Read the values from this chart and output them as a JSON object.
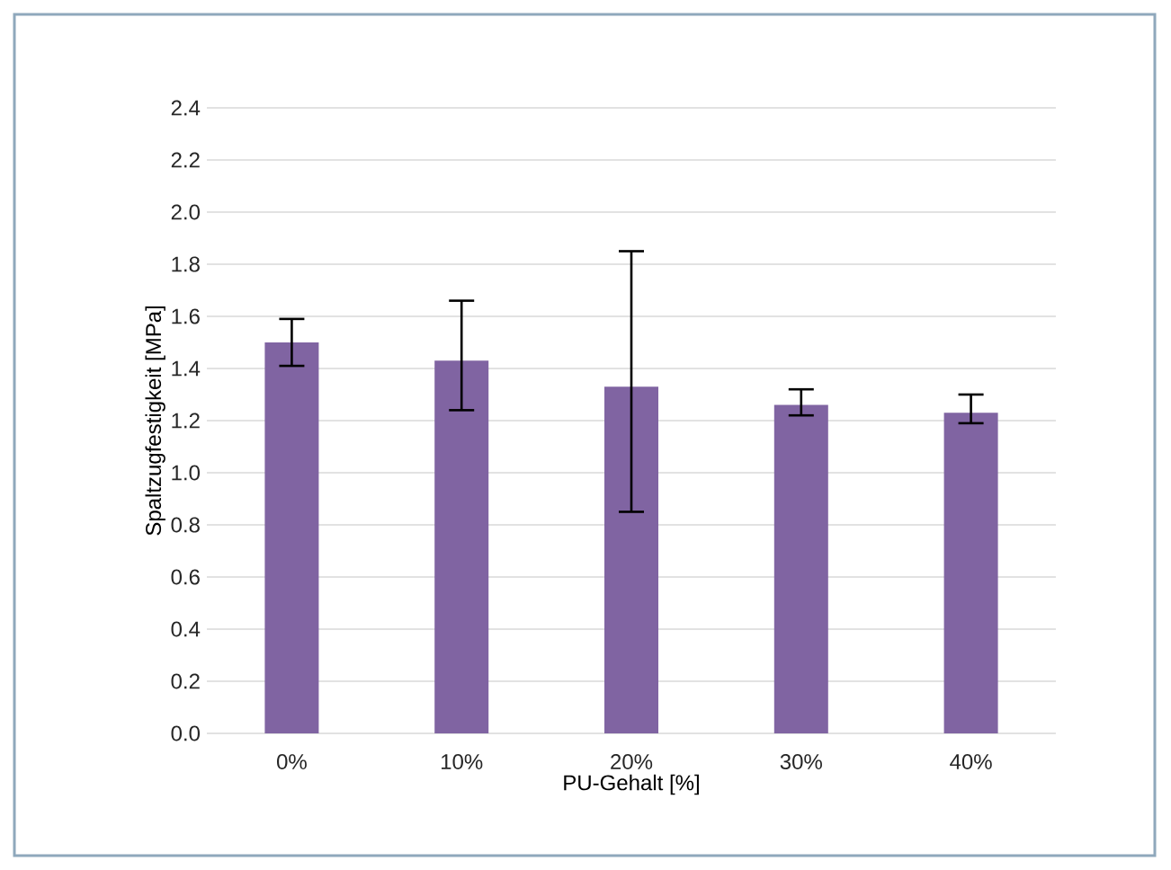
{
  "chart_data": {
    "type": "bar",
    "xlabel": "PU-Gehalt [%]",
    "ylabel": "Spaltzugfestigkeit [MPa]",
    "categories": [
      "0%",
      "10%",
      "20%",
      "30%",
      "40%"
    ],
    "values": [
      1.5,
      1.43,
      1.33,
      1.26,
      1.23
    ],
    "errors": [
      [
        1.41,
        1.59
      ],
      [
        1.24,
        1.66
      ],
      [
        0.85,
        1.85
      ],
      [
        1.22,
        1.32
      ],
      [
        1.19,
        1.3
      ]
    ],
    "color": "#8064a2",
    "ylim": [
      0,
      2.4
    ],
    "yticks": [
      {
        "value": 0,
        "label": "0.0"
      },
      0.2,
      0.4,
      0.6,
      0.8,
      {
        "value": 1,
        "label": "1.0"
      },
      1.2,
      1.4,
      1.6,
      1.8,
      {
        "value": 2,
        "label": "2.0"
      },
      2.2,
      2.4
    ],
    "grid": "y"
  }
}
